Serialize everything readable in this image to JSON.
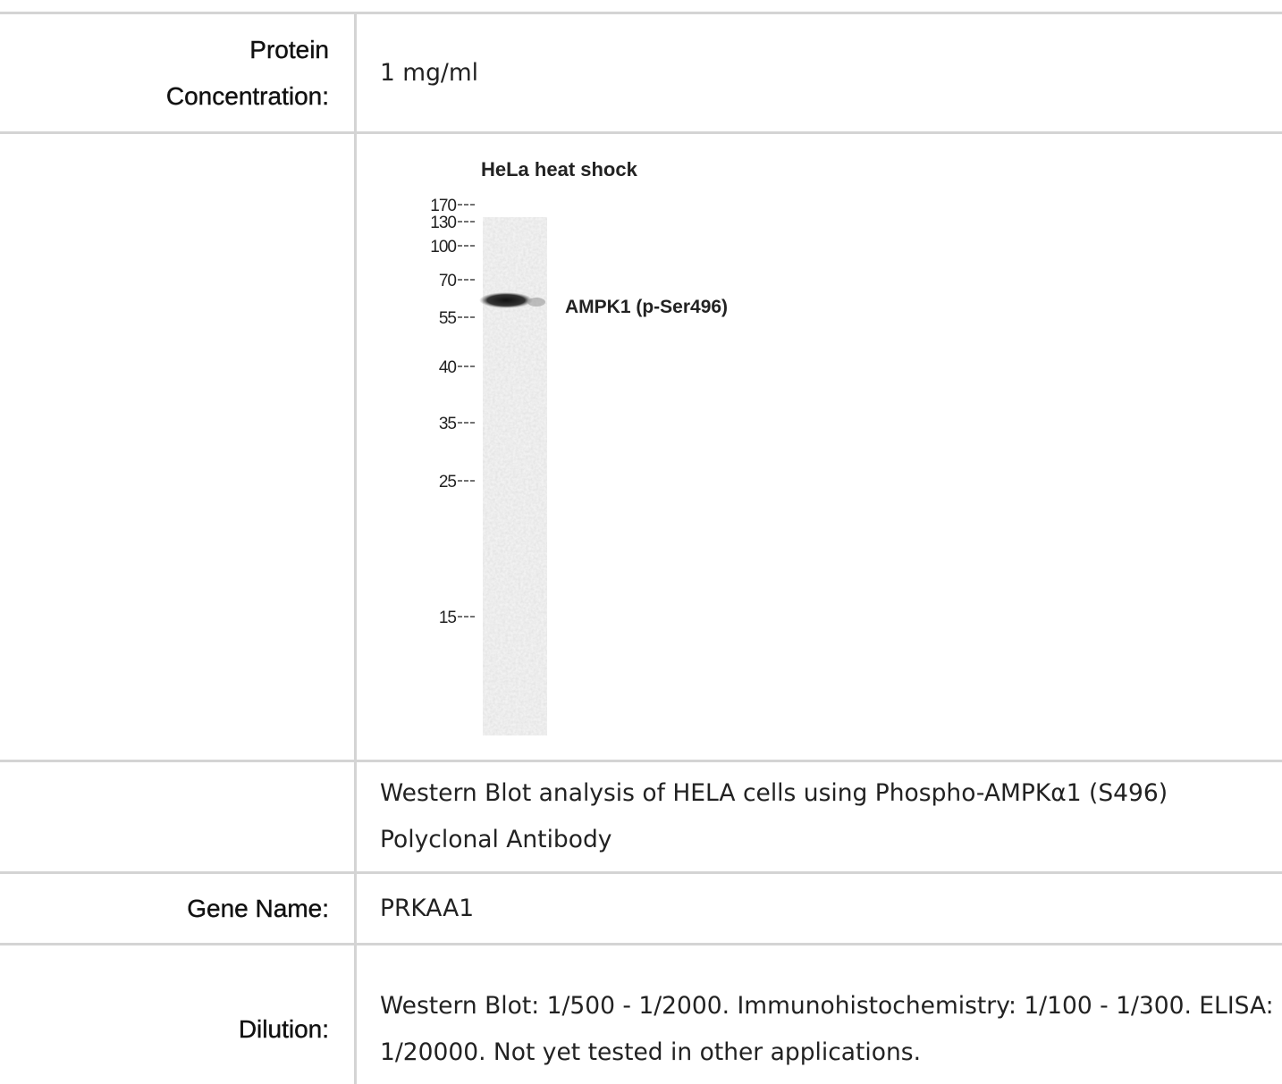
{
  "table": {
    "rows": [
      {
        "label": "Protein Concentration:",
        "value": "1 mg/ml"
      },
      {
        "blot": {
          "title": "HeLa heat shock",
          "markers": [
            "170",
            "130",
            "100",
            "70",
            "55",
            "40",
            "35",
            "25",
            "15"
          ],
          "band_label": "AMPK1 (p-Ser496)"
        }
      },
      {
        "value": "Western Blot analysis of HELA cells using Phospho-AMPKα1 (S496) Polyclonal Antibody"
      },
      {
        "label": "Gene Name:",
        "value": "PRKAA1"
      },
      {
        "label": "Dilution:",
        "value": "Western Blot: 1/500 - 1/2000. Immunohistochemistry: 1/100 - 1/300. ELISA: 1/20000. Not yet tested in other applications."
      }
    ]
  }
}
